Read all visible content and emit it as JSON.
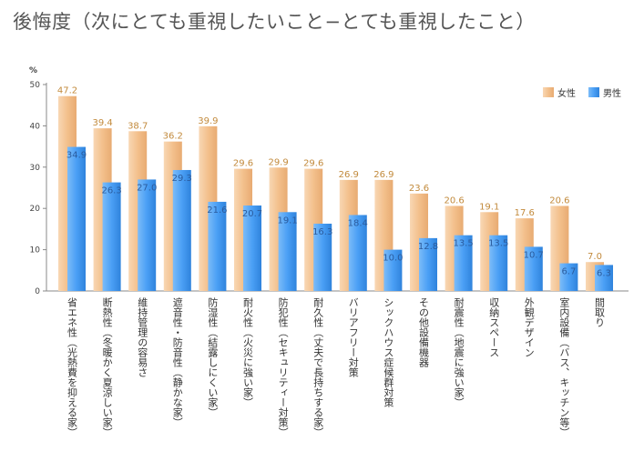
{
  "title": "後悔度（次にとても重視したいこと−とても重視したこと）",
  "chart_data": {
    "type": "bar",
    "unit": "%",
    "ylim": [
      0,
      50
    ],
    "yticks": [
      "0",
      "10",
      "20",
      "30",
      "40",
      "50"
    ],
    "grid": false,
    "legend": "top-right",
    "categories": [
      "省エネ性（光熱費を抑える家）",
      "断熱性（冬暖かく夏涼しい家）",
      "維持管理の容易さ",
      "遮音性・防音性（静かな家）",
      "防湿性（結露しにくい家）",
      "耐火性（火災に強い家）",
      "防犯性（セキュリティー対策）",
      "耐久性（丈夫で長持ちする家）",
      "バリアフリー対策",
      "シックハウス症候群対策",
      "その他設備機器",
      "耐震性（地震に強い家）",
      "収納スペース",
      "外観デザイン",
      "室内設備（バス、キッチン等）",
      "間取り"
    ],
    "series": [
      {
        "name": "女性",
        "color": "#f5c89a",
        "values": [
          47.2,
          39.4,
          38.7,
          36.2,
          39.9,
          29.6,
          29.9,
          29.6,
          26.9,
          26.9,
          23.6,
          20.6,
          19.1,
          17.6,
          20.6,
          7.0
        ],
        "labels": [
          "47.2",
          "39.4",
          "38.7",
          "36.2",
          "39.9",
          "29.6",
          "29.9",
          "29.6",
          "26.9",
          "26.9",
          "23.6",
          "20.6",
          "19.1",
          "17.6",
          "20.6",
          "7.0"
        ]
      },
      {
        "name": "男性",
        "color": "#4a9ff5",
        "values": [
          34.9,
          26.3,
          27.0,
          29.3,
          21.6,
          20.7,
          19.1,
          16.3,
          18.4,
          10.0,
          12.8,
          13.5,
          13.5,
          10.7,
          6.7,
          6.3
        ],
        "labels": [
          "34.9",
          "26.3",
          "27.0",
          "29.3",
          "21.6",
          "20.7",
          "19.1",
          "16.3",
          "18.4",
          "10.0",
          "12.8",
          "13.5",
          "13.5",
          "10.7",
          "6.7",
          "6.3"
        ]
      }
    ]
  }
}
